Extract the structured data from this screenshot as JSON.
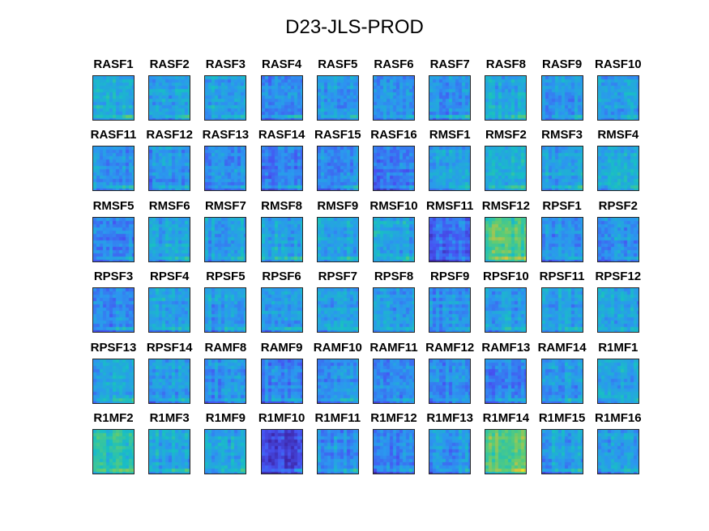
{
  "title": "D23-JLS-PROD",
  "colormap": [
    "#3e26a8",
    "#4653f2",
    "#2c96f0",
    "#18bfc4",
    "#5ccc74",
    "#d6c03c",
    "#f9fb0e"
  ],
  "chart_data": {
    "type": "heatmap",
    "title": "D23-JLS-PROD",
    "grid": {
      "rows": 6,
      "cols": 10
    },
    "panels": [
      {
        "label": "RASF1",
        "mean": 0.44
      },
      {
        "label": "RASF2",
        "mean": 0.4
      },
      {
        "label": "RASF3",
        "mean": 0.38
      },
      {
        "label": "RASF4",
        "mean": 0.3
      },
      {
        "label": "RASF5",
        "mean": 0.36
      },
      {
        "label": "RASF6",
        "mean": 0.32
      },
      {
        "label": "RASF7",
        "mean": 0.34
      },
      {
        "label": "RASF8",
        "mean": 0.4
      },
      {
        "label": "RASF9",
        "mean": 0.36
      },
      {
        "label": "RASF10",
        "mean": 0.36
      },
      {
        "label": "RASF11",
        "mean": 0.33
      },
      {
        "label": "RASF12",
        "mean": 0.33
      },
      {
        "label": "RASF13",
        "mean": 0.32
      },
      {
        "label": "RASF14",
        "mean": 0.28
      },
      {
        "label": "RASF15",
        "mean": 0.32
      },
      {
        "label": "RASF16",
        "mean": 0.26
      },
      {
        "label": "RMSF1",
        "mean": 0.38
      },
      {
        "label": "RMSF2",
        "mean": 0.42
      },
      {
        "label": "RMSF3",
        "mean": 0.4
      },
      {
        "label": "RMSF4",
        "mean": 0.4
      },
      {
        "label": "RMSF5",
        "mean": 0.28
      },
      {
        "label": "RMSF6",
        "mean": 0.38
      },
      {
        "label": "RMSF7",
        "mean": 0.38
      },
      {
        "label": "RMSF8",
        "mean": 0.4
      },
      {
        "label": "RMSF9",
        "mean": 0.38
      },
      {
        "label": "RMSF10",
        "mean": 0.4
      },
      {
        "label": "RMSF11",
        "mean": 0.22
      },
      {
        "label": "RMSF12",
        "mean": 0.62
      },
      {
        "label": "RPSF1",
        "mean": 0.34
      },
      {
        "label": "RPSF2",
        "mean": 0.34
      },
      {
        "label": "RPSF3",
        "mean": 0.33
      },
      {
        "label": "RPSF4",
        "mean": 0.38
      },
      {
        "label": "RPSF5",
        "mean": 0.38
      },
      {
        "label": "RPSF6",
        "mean": 0.37
      },
      {
        "label": "RPSF7",
        "mean": 0.38
      },
      {
        "label": "RPSF8",
        "mean": 0.36
      },
      {
        "label": "RPSF9",
        "mean": 0.35
      },
      {
        "label": "RPSF10",
        "mean": 0.36
      },
      {
        "label": "RPSF11",
        "mean": 0.38
      },
      {
        "label": "RPSF12",
        "mean": 0.4
      },
      {
        "label": "RPSF13",
        "mean": 0.38
      },
      {
        "label": "RPSF14",
        "mean": 0.36
      },
      {
        "label": "RAMF8",
        "mean": 0.33
      },
      {
        "label": "RAMF9",
        "mean": 0.28
      },
      {
        "label": "RAMF10",
        "mean": 0.31
      },
      {
        "label": "RAMF11",
        "mean": 0.3
      },
      {
        "label": "RAMF12",
        "mean": 0.3
      },
      {
        "label": "RAMF13",
        "mean": 0.3
      },
      {
        "label": "RAMF14",
        "mean": 0.36
      },
      {
        "label": "R1MF1",
        "mean": 0.38
      },
      {
        "label": "R1MF2",
        "mean": 0.52
      },
      {
        "label": "R1MF3",
        "mean": 0.4
      },
      {
        "label": "R1MF9",
        "mean": 0.4
      },
      {
        "label": "R1MF10",
        "mean": 0.12
      },
      {
        "label": "R1MF11",
        "mean": 0.33
      },
      {
        "label": "R1MF12",
        "mean": 0.28
      },
      {
        "label": "R1MF13",
        "mean": 0.34
      },
      {
        "label": "R1MF14",
        "mean": 0.64
      },
      {
        "label": "R1MF15",
        "mean": 0.36
      },
      {
        "label": "R1MF16",
        "mean": 0.38
      }
    ]
  }
}
